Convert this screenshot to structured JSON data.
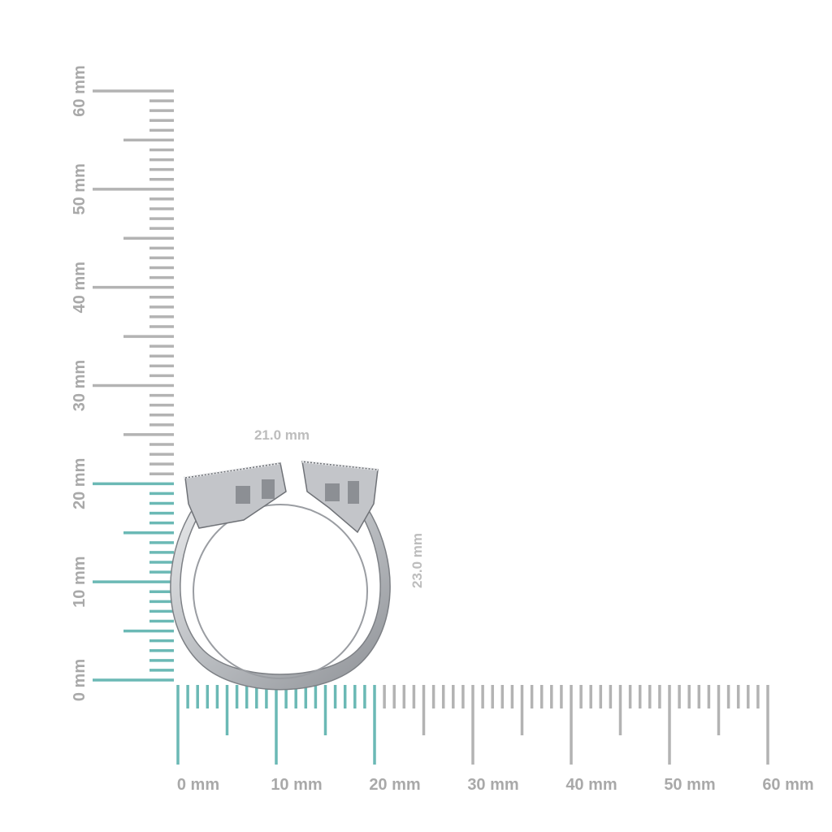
{
  "colors": {
    "accent": "#6bb9b5",
    "ruler": "#b3b3b3",
    "label": "#a9a9a9",
    "ring": "#c9cbce"
  },
  "vertical_ruler": {
    "labels": [
      "0 mm",
      "10 mm",
      "20 mm",
      "30 mm",
      "40 mm",
      "50 mm",
      "60 mm"
    ],
    "highlight_to_mm": 20
  },
  "horizontal_ruler": {
    "labels": [
      "0 mm",
      "10 mm",
      "20 mm",
      "30 mm",
      "40 mm",
      "50 mm",
      "60 mm"
    ],
    "highlight_to_mm": 20
  },
  "dimensions": {
    "width": "21.0 mm",
    "height": "23.0 mm"
  },
  "product": {
    "icon": "open-ring-icon"
  }
}
